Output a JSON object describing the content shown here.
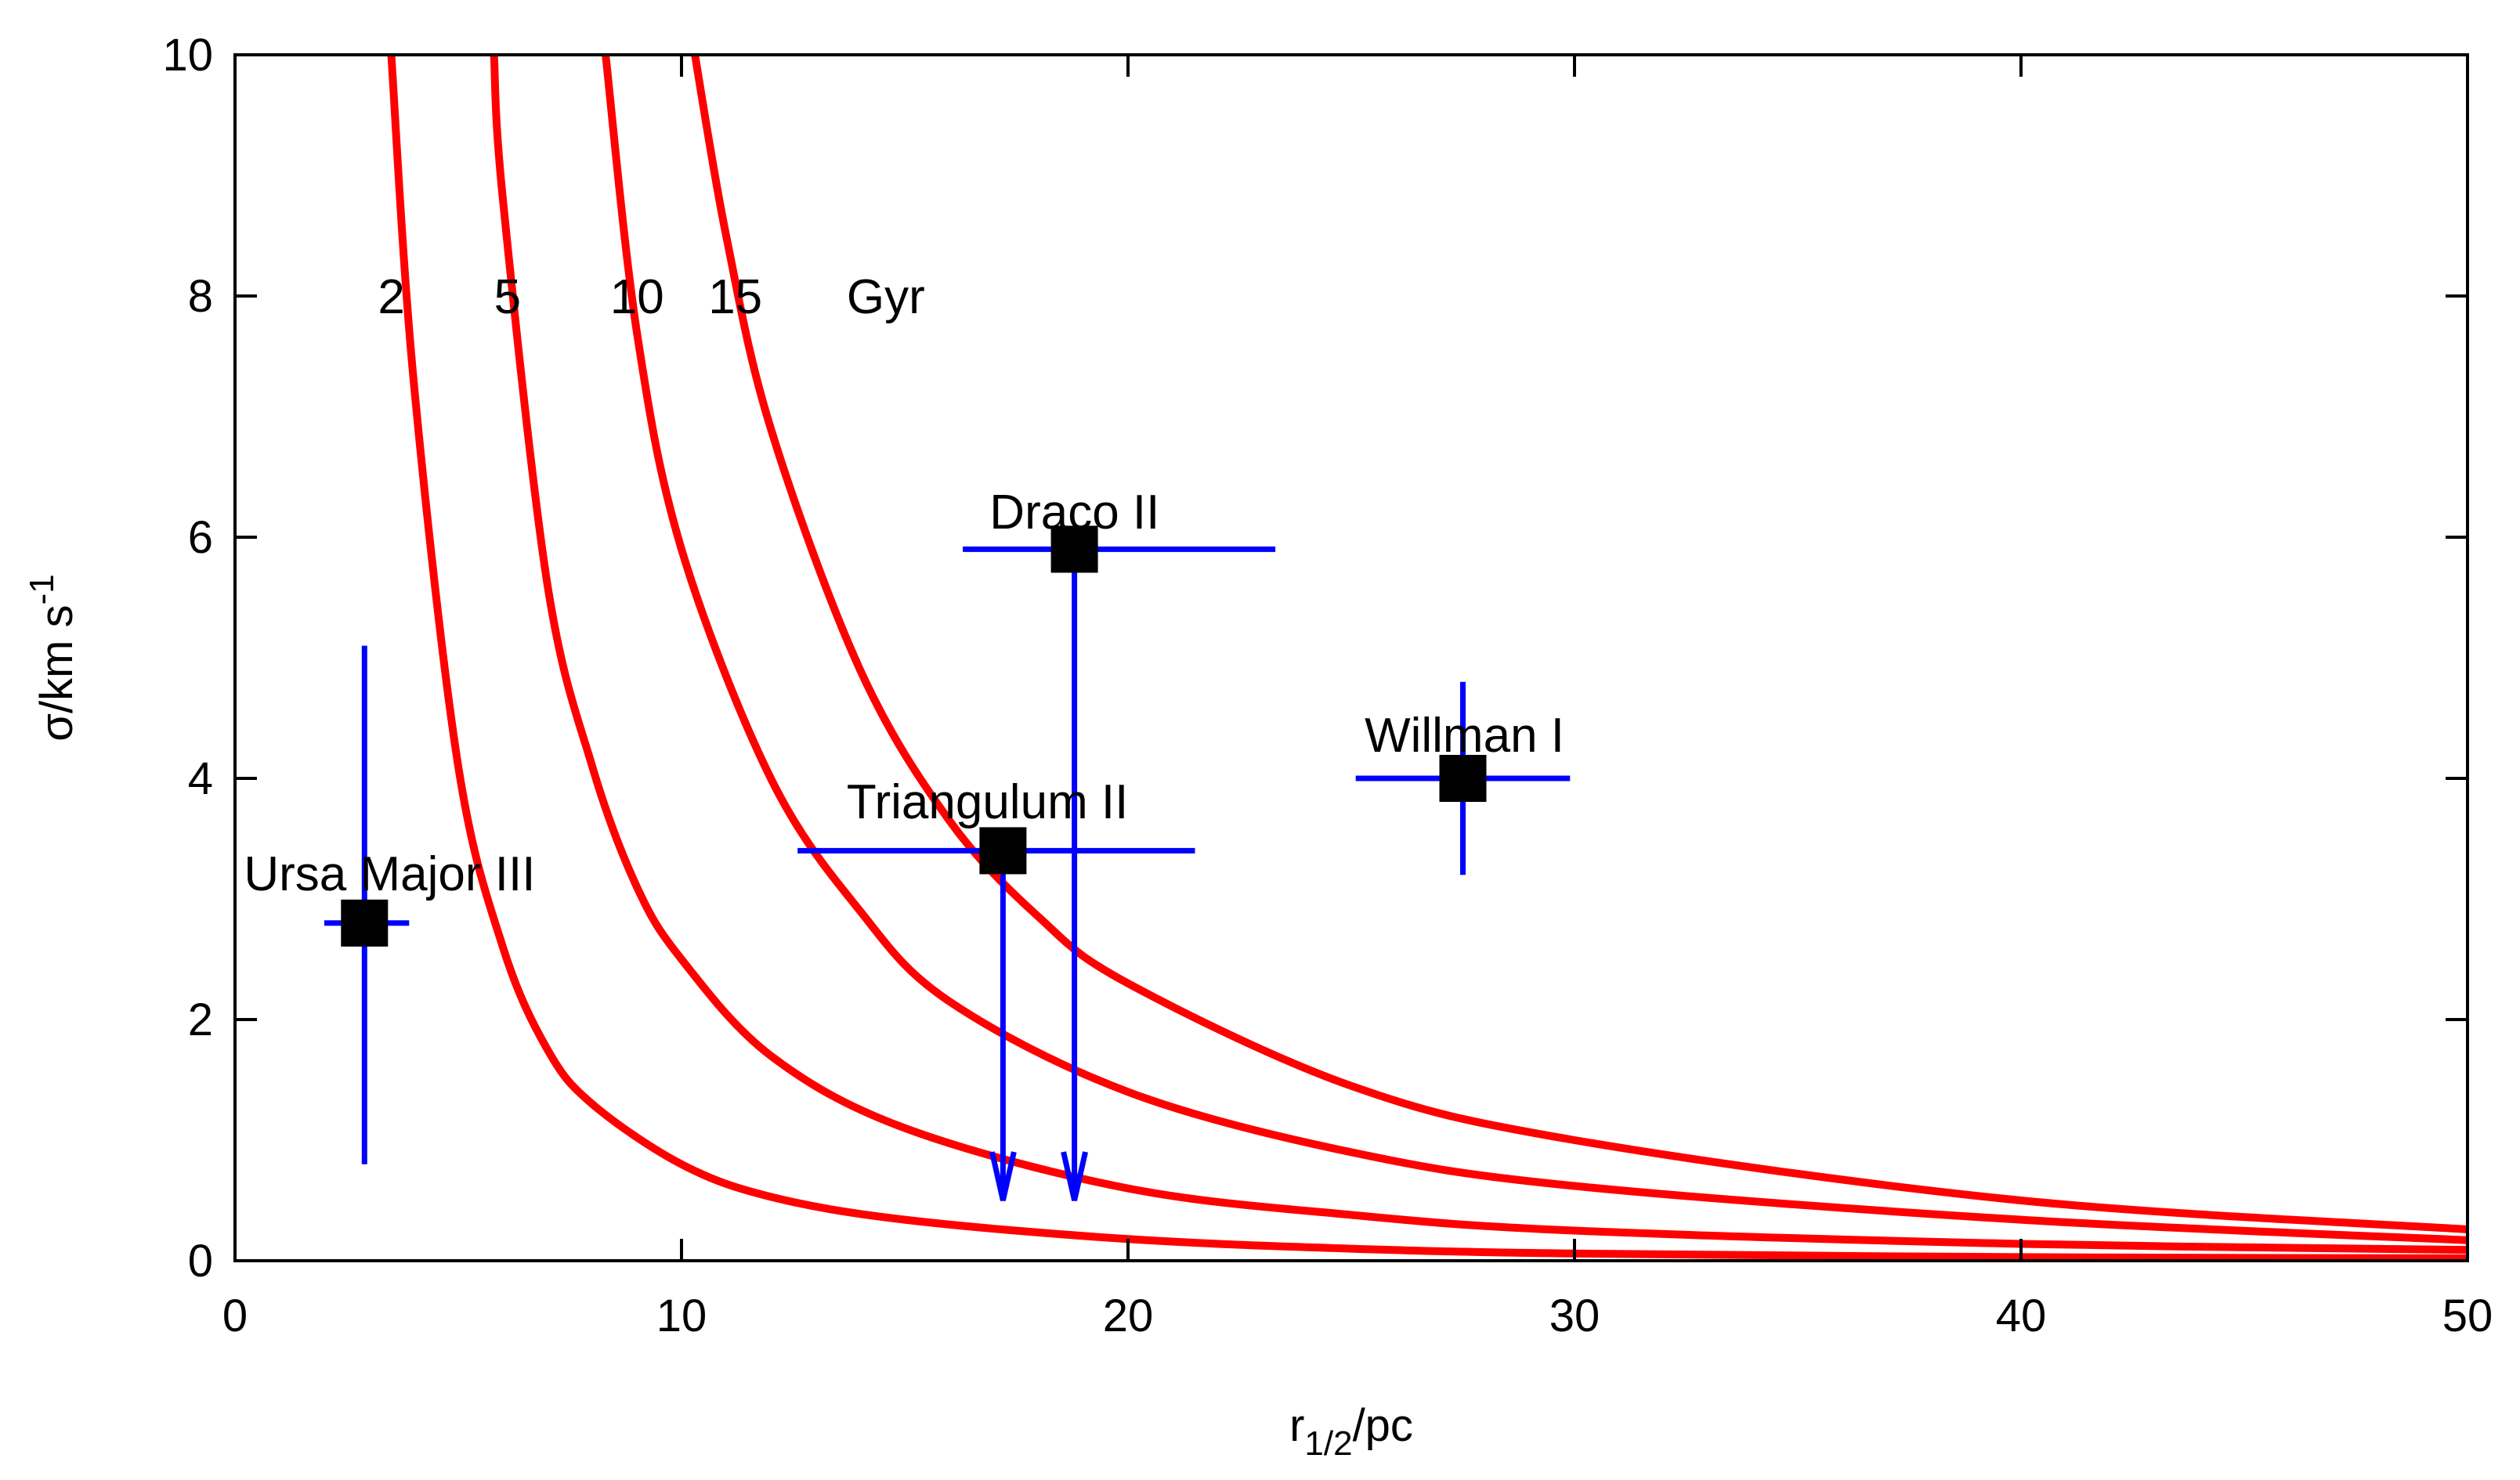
{
  "chart_data": {
    "type": "scatter",
    "title": "",
    "xlabel": {
      "base": "r",
      "sub": "1/2",
      "suffix": "/pc"
    },
    "ylabel": {
      "base": "σ/km s",
      "sup": "-1"
    },
    "xlim": [
      0,
      50
    ],
    "ylim": [
      0,
      10
    ],
    "xticks": [
      0,
      10,
      20,
      30,
      40,
      50
    ],
    "yticks": [
      0,
      2,
      4,
      6,
      8,
      10
    ],
    "xtick_labels": [
      "0",
      "10",
      "20",
      "30",
      "40",
      "50"
    ],
    "ytick_labels": [
      "0",
      "2",
      "4",
      "6",
      "8",
      "10"
    ],
    "grid": false,
    "curves": {
      "color": "#ff0000",
      "label_y": 8,
      "unit_label": "Gyr",
      "unit_label_x": 13.7,
      "items": [
        {
          "label": "2",
          "age_gyr": 2,
          "label_x": 3.2,
          "points": [
            [
              3.5,
              10
            ],
            [
              4,
              7.3
            ],
            [
              5,
              4.1
            ],
            [
              6,
              2.6
            ],
            [
              7,
              1.75
            ],
            [
              8,
              1.3
            ],
            [
              10,
              0.8
            ],
            [
              12,
              0.53
            ],
            [
              15,
              0.34
            ],
            [
              20,
              0.18
            ],
            [
              25,
              0.1
            ],
            [
              30,
              0.06
            ],
            [
              40,
              0.03
            ],
            [
              50,
              0.02
            ]
          ]
        },
        {
          "label": "5",
          "age_gyr": 5,
          "label_x": 5.8,
          "points": [
            [
              5.8,
              10
            ],
            [
              6,
              8.8
            ],
            [
              7,
              5.6
            ],
            [
              8,
              4.1
            ],
            [
              9,
              3.1
            ],
            [
              10,
              2.5
            ],
            [
              12,
              1.7
            ],
            [
              15,
              1.1
            ],
            [
              20,
              0.6
            ],
            [
              25,
              0.38
            ],
            [
              30,
              0.25
            ],
            [
              40,
              0.14
            ],
            [
              50,
              0.09
            ]
          ]
        },
        {
          "label": "10",
          "age_gyr": 10,
          "label_x": 8.4,
          "points": [
            [
              8.3,
              10
            ],
            [
              9,
              7.7
            ],
            [
              10,
              5.9
            ],
            [
              12,
              4.0
            ],
            [
              14,
              2.9
            ],
            [
              16,
              2.15
            ],
            [
              20,
              1.4
            ],
            [
              25,
              0.9
            ],
            [
              30,
              0.62
            ],
            [
              40,
              0.34
            ],
            [
              50,
              0.17
            ]
          ]
        },
        {
          "label": "15",
          "age_gyr": 15,
          "label_x": 10.6,
          "points": [
            [
              10.3,
              10
            ],
            [
              11,
              8.5
            ],
            [
              12,
              6.9
            ],
            [
              14,
              4.9
            ],
            [
              16,
              3.65
            ],
            [
              18,
              2.85
            ],
            [
              20,
              2.3
            ],
            [
              25,
              1.45
            ],
            [
              30,
              1.0
            ],
            [
              40,
              0.5
            ],
            [
              50,
              0.26
            ]
          ]
        }
      ]
    },
    "series": [
      {
        "name": "Ursa Major III",
        "x": 2.9,
        "y": 2.8,
        "xerr": [
          0.9,
          1.0
        ],
        "yerr": [
          2.0,
          2.3
        ],
        "upper_limit": false,
        "label_x": 0.2,
        "label_y": 3.2
      },
      {
        "name": "Triangulum II",
        "x": 17.2,
        "y": 3.4,
        "xerr": [
          4.6,
          4.3
        ],
        "yerr": [
          0,
          0
        ],
        "upper_limit": true,
        "arrow_to": 0.5,
        "label_x": 13.7,
        "label_y": 3.8
      },
      {
        "name": "Draco II",
        "x": 18.8,
        "y": 5.9,
        "xerr": [
          2.5,
          4.5
        ],
        "yerr": [
          0,
          0
        ],
        "upper_limit": true,
        "arrow_to": 0.5,
        "label_x": 16.9,
        "label_y": 6.2
      },
      {
        "name": "Willman I",
        "x": 27.5,
        "y": 4.0,
        "xerr": [
          2.4,
          2.4
        ],
        "yerr": [
          0.8,
          0.8
        ],
        "upper_limit": false,
        "label_x": 25.3,
        "label_y": 4.35
      }
    ],
    "colors": {
      "errorbar": "#0000ff",
      "marker": "#000000",
      "curve": "#ff0000"
    }
  }
}
